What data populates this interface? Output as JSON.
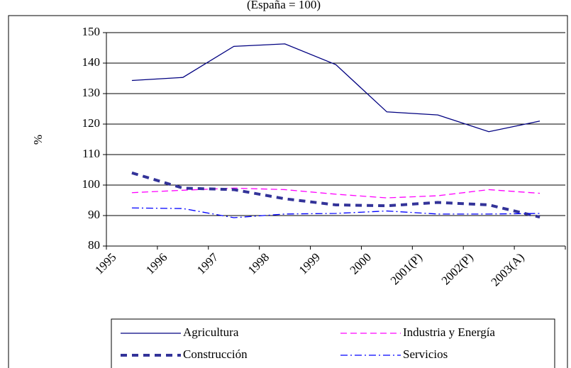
{
  "chart_data": {
    "type": "line",
    "title": "(España = 100)",
    "y_label": "%",
    "categories": [
      "1995",
      "1996",
      "1997",
      "1998",
      "1999",
      "2000",
      "2001(P)",
      "2002(P)",
      "2003(A)"
    ],
    "series": [
      {
        "name": "Agricultura",
        "color": "#000080",
        "line_style": "solid",
        "values": [
          134.3,
          135.3,
          145.5,
          146.3,
          139.5,
          124,
          123,
          117.5,
          121
        ]
      },
      {
        "name": "Industria y Energía",
        "color": "#ff00ff",
        "line_style": "dashed",
        "values": [
          97.5,
          98.3,
          99,
          98.5,
          97,
          95.8,
          96.5,
          98.5,
          97.3
        ]
      },
      {
        "name": "Construcción",
        "color": "#333399",
        "line_style": "thick-dashed",
        "values": [
          104,
          99,
          98.5,
          95.5,
          93.5,
          93.2,
          94.3,
          93.5,
          89.5
        ]
      },
      {
        "name": "Servicios",
        "color": "#0000ff",
        "line_style": "dash-dot",
        "values": [
          92.5,
          92.3,
          89.3,
          90.5,
          90.7,
          91.5,
          90.5,
          90.5,
          90.7
        ]
      }
    ],
    "ylim": [
      80,
      150
    ],
    "yticks": [
      80,
      90,
      100,
      110,
      120,
      130,
      140,
      150
    ],
    "grid": true,
    "legend": "bottom"
  }
}
